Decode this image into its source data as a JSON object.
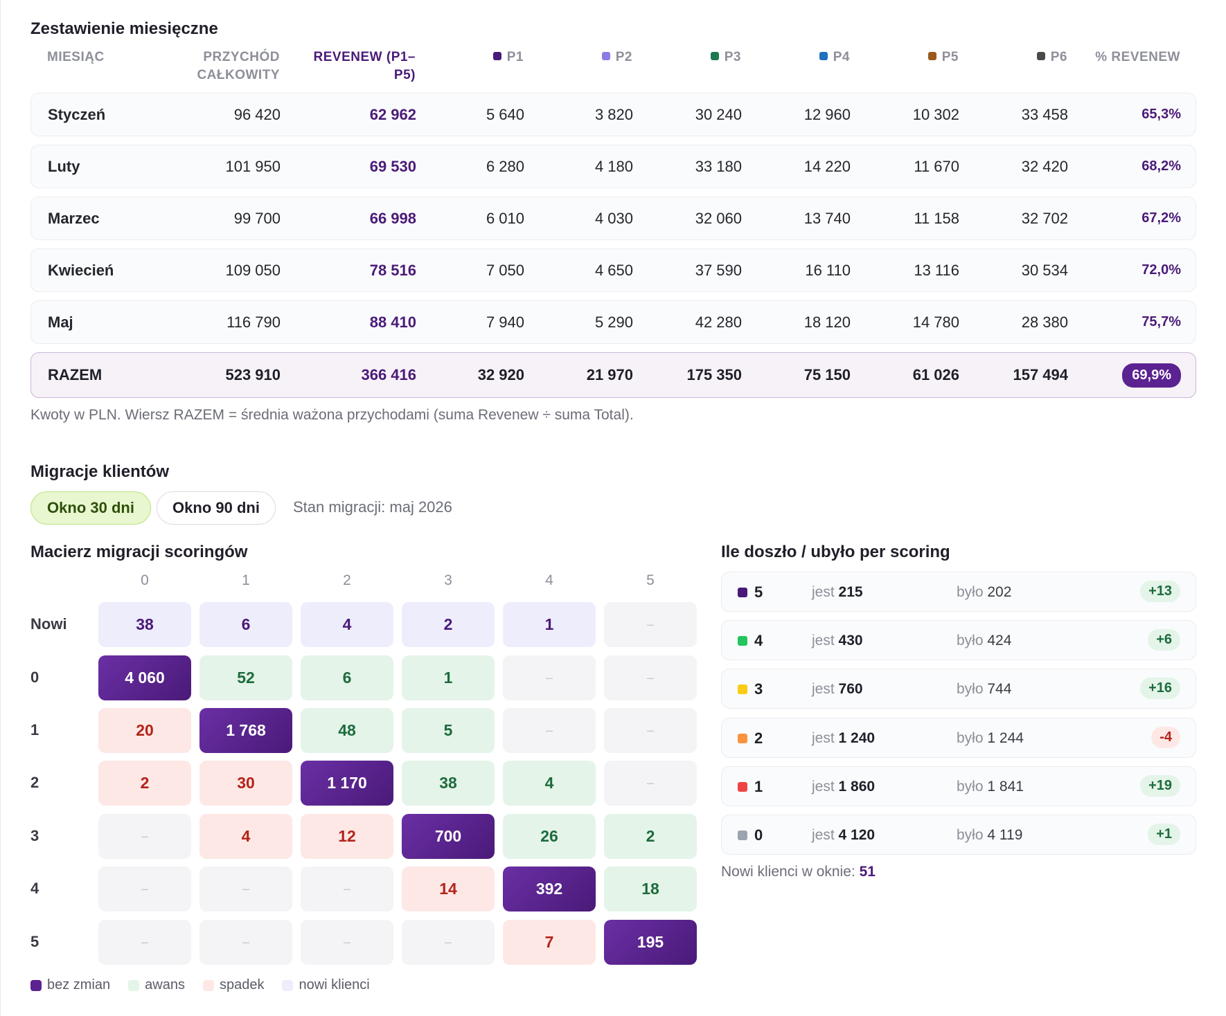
{
  "monthly": {
    "title": "Zestawienie miesięczne",
    "headers": {
      "month": "MIESIĄC",
      "total_l1": "PRZYCHÓD",
      "total_l2": "CAŁKOWITY",
      "rev_l1": "REVENEW (P1–",
      "rev_l2": "P5)",
      "p1": "P1",
      "p2": "P2",
      "p3": "P3",
      "p4": "P4",
      "p5": "P5",
      "p6": "P6",
      "pct": "% REVENEW"
    },
    "p_colors": {
      "p1": "#4a1a78",
      "p2": "#8b7be6",
      "p3": "#1d7a4f",
      "p4": "#1f6fc0",
      "p5": "#9a5a1c",
      "p6": "#4a4a4a"
    },
    "rows": [
      {
        "name": "Styczeń",
        "total": "96 420",
        "rev": "62 962",
        "p1": "5 640",
        "p2": "3 820",
        "p3": "30 240",
        "p4": "12 960",
        "p5": "10 302",
        "p6": "33 458",
        "pct": "65,3%"
      },
      {
        "name": "Luty",
        "total": "101 950",
        "rev": "69 530",
        "p1": "6 280",
        "p2": "4 180",
        "p3": "33 180",
        "p4": "14 220",
        "p5": "11 670",
        "p6": "32 420",
        "pct": "68,2%"
      },
      {
        "name": "Marzec",
        "total": "99 700",
        "rev": "66 998",
        "p1": "6 010",
        "p2": "4 030",
        "p3": "32 060",
        "p4": "13 740",
        "p5": "11 158",
        "p6": "32 702",
        "pct": "67,2%"
      },
      {
        "name": "Kwiecień",
        "total": "109 050",
        "rev": "78 516",
        "p1": "7 050",
        "p2": "4 650",
        "p3": "37 590",
        "p4": "16 110",
        "p5": "13 116",
        "p6": "30 534",
        "pct": "72,0%"
      },
      {
        "name": "Maj",
        "total": "116 790",
        "rev": "88 410",
        "p1": "7 940",
        "p2": "5 290",
        "p3": "42 280",
        "p4": "18 120",
        "p5": "14 780",
        "p6": "28 380",
        "pct": "75,7%"
      }
    ],
    "total": {
      "name": "RAZEM",
      "total": "523 910",
      "rev": "366 416",
      "p1": "32 920",
      "p2": "21 970",
      "p3": "175 350",
      "p4": "75 150",
      "p5": "61 026",
      "p6": "157 494",
      "pct": "69,9%"
    },
    "note": "Kwoty w PLN. Wiersz RAZEM = średnia ważona przychodami (suma Revenew ÷ suma Total)."
  },
  "migration": {
    "title": "Migracje klientów",
    "tab_30": "Okno 30 dni",
    "tab_90": "Okno 90 dni",
    "state": "Stan migracji: maj 2026",
    "matrix_title": "Macierz migracji scoringów",
    "columns": [
      "0",
      "1",
      "2",
      "3",
      "4",
      "5"
    ],
    "row_labels": [
      "Nowi",
      "0",
      "1",
      "2",
      "3",
      "4",
      "5"
    ],
    "cells": [
      [
        {
          "v": "38",
          "t": "new"
        },
        {
          "v": "6",
          "t": "new"
        },
        {
          "v": "4",
          "t": "new"
        },
        {
          "v": "2",
          "t": "new"
        },
        {
          "v": "1",
          "t": "new"
        },
        {
          "v": "–",
          "t": "empty"
        }
      ],
      [
        {
          "v": "4 060",
          "t": "same"
        },
        {
          "v": "52",
          "t": "up"
        },
        {
          "v": "6",
          "t": "up"
        },
        {
          "v": "1",
          "t": "up"
        },
        {
          "v": "–",
          "t": "empty"
        },
        {
          "v": "–",
          "t": "empty"
        }
      ],
      [
        {
          "v": "20",
          "t": "down"
        },
        {
          "v": "1 768",
          "t": "same"
        },
        {
          "v": "48",
          "t": "up"
        },
        {
          "v": "5",
          "t": "up"
        },
        {
          "v": "–",
          "t": "empty"
        },
        {
          "v": "–",
          "t": "empty"
        }
      ],
      [
        {
          "v": "2",
          "t": "down"
        },
        {
          "v": "30",
          "t": "down"
        },
        {
          "v": "1 170",
          "t": "same"
        },
        {
          "v": "38",
          "t": "up"
        },
        {
          "v": "4",
          "t": "up"
        },
        {
          "v": "–",
          "t": "empty"
        }
      ],
      [
        {
          "v": "–",
          "t": "empty"
        },
        {
          "v": "4",
          "t": "down"
        },
        {
          "v": "12",
          "t": "down"
        },
        {
          "v": "700",
          "t": "same"
        },
        {
          "v": "26",
          "t": "up"
        },
        {
          "v": "2",
          "t": "up"
        }
      ],
      [
        {
          "v": "–",
          "t": "empty"
        },
        {
          "v": "–",
          "t": "empty"
        },
        {
          "v": "–",
          "t": "empty"
        },
        {
          "v": "14",
          "t": "down"
        },
        {
          "v": "392",
          "t": "same"
        },
        {
          "v": "18",
          "t": "up"
        }
      ],
      [
        {
          "v": "–",
          "t": "empty"
        },
        {
          "v": "–",
          "t": "empty"
        },
        {
          "v": "–",
          "t": "empty"
        },
        {
          "v": "–",
          "t": "empty"
        },
        {
          "v": "7",
          "t": "down"
        },
        {
          "v": "195",
          "t": "same"
        }
      ]
    ],
    "legend": [
      {
        "label": "bez zmian",
        "color": "#5b2291"
      },
      {
        "label": "awans",
        "color": "#e4f4e9"
      },
      {
        "label": "spadek",
        "color": "#fde8e6"
      },
      {
        "label": "nowi klienci",
        "color": "#eeedfc"
      }
    ]
  },
  "scoring": {
    "title": "Ile doszło / ubyło per scoring",
    "now_label": "jest",
    "was_label": "było",
    "rows": [
      {
        "score": "5",
        "color": "#4a1a78",
        "now": "215",
        "was": "202",
        "delta": "+13",
        "sign": "pos"
      },
      {
        "score": "4",
        "color": "#22c55e",
        "now": "430",
        "was": "424",
        "delta": "+6",
        "sign": "pos"
      },
      {
        "score": "3",
        "color": "#facc15",
        "now": "760",
        "was": "744",
        "delta": "+16",
        "sign": "pos"
      },
      {
        "score": "2",
        "color": "#fb923c",
        "now": "1 240",
        "was": "1 244",
        "delta": "-4",
        "sign": "neg"
      },
      {
        "score": "1",
        "color": "#ef4444",
        "now": "1 860",
        "was": "1 841",
        "delta": "+19",
        "sign": "pos"
      },
      {
        "score": "0",
        "color": "#9ca3af",
        "now": "4 120",
        "was": "4 119",
        "delta": "+1",
        "sign": "pos"
      }
    ],
    "new_label": "Nowi klienci w oknie:",
    "new_value": "51"
  }
}
